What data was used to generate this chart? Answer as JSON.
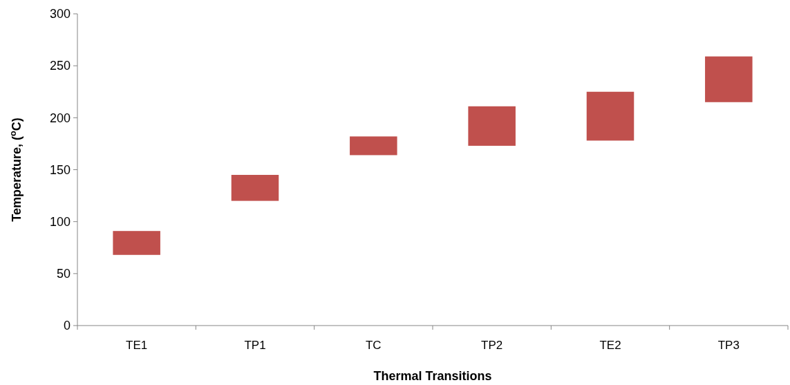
{
  "chart_data": {
    "type": "bar",
    "xlabel": "Thermal  Transitions",
    "ylabel": "Temperature, ($^{o}$C)",
    "categories": [
      "TE1",
      "TP1",
      "TC",
      "TP2",
      "TE2",
      "TP3"
    ],
    "base": [
      68,
      120,
      164,
      173,
      178,
      215
    ],
    "values": [
      23,
      25,
      18,
      38,
      47,
      44
    ],
    "color": "#c0504d",
    "ylim": [
      0,
      300
    ],
    "yticks": [
      0,
      50,
      100,
      150,
      200,
      250,
      300
    ],
    "grid": false
  }
}
